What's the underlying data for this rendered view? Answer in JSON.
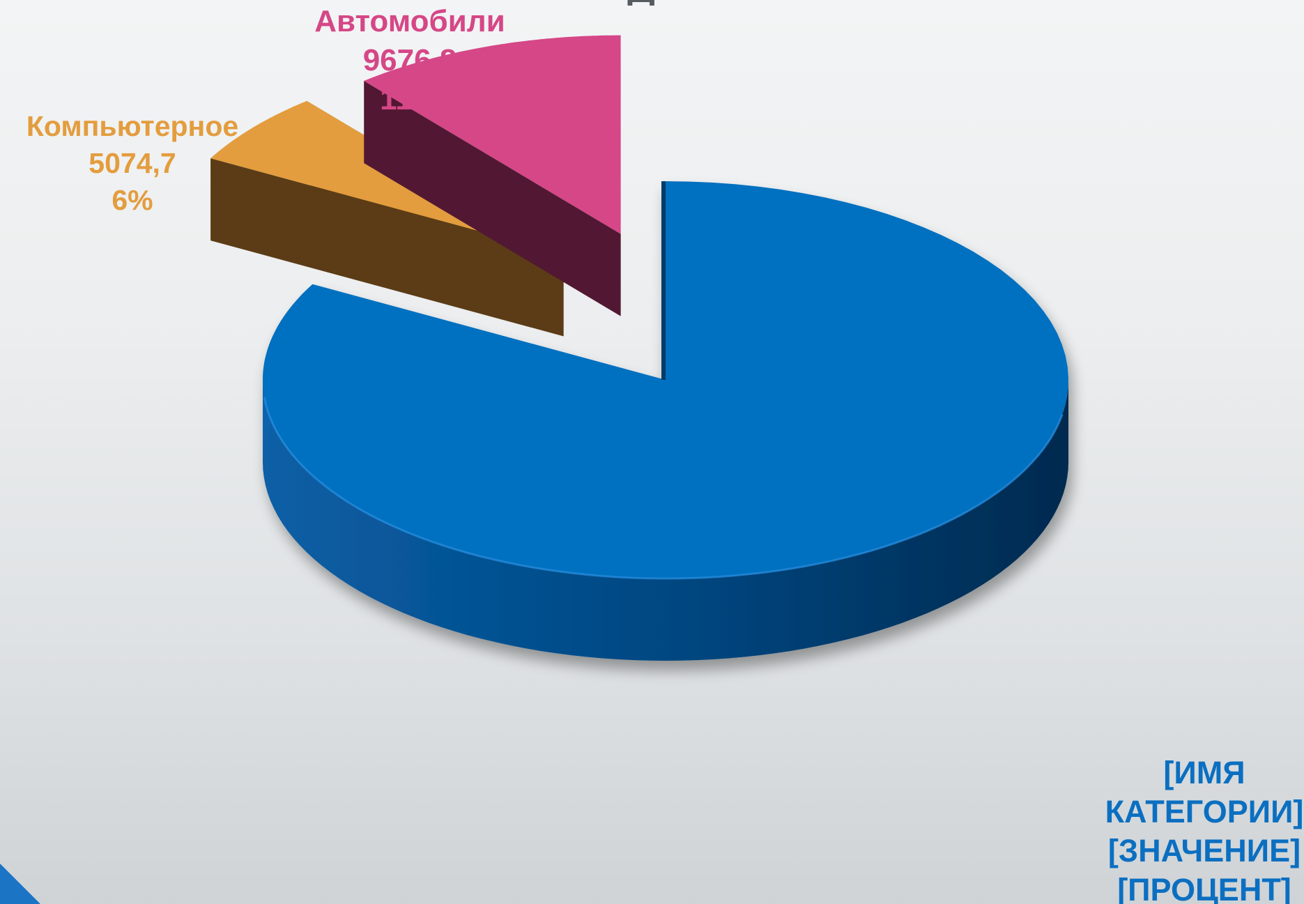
{
  "chart_data": {
    "type": "pie",
    "style": "3d-exploded",
    "title": "",
    "slices": [
      {
        "name": "",
        "value_label": "",
        "percent": 83,
        "label_lines": [
          "[ИМЯ",
          "КАТЕГОРИИ]",
          "[ЗНАЧЕНИЕ]",
          "[ПРОЦЕНТ]"
        ],
        "color": "#0070c0",
        "side_color": "#003d70"
      },
      {
        "name": "Компьютерное",
        "value_label": "5074,7",
        "percent_label": "6%",
        "percent": 6,
        "label_lines": [
          "Компьютерное",
          "5074,7",
          "6%"
        ],
        "color": "#e39d3e",
        "side_color": "#5b3c16"
      },
      {
        "name": "Автомобили",
        "value_label": "9676,8",
        "percent_label": "11%",
        "percent": 11,
        "label_lines": [
          "Автомобили",
          "9676,8",
          "11%"
        ],
        "color": "#d54787",
        "side_color": "#521833"
      }
    ]
  },
  "colors": {
    "label_blue": "#0b6fc1",
    "label_orange": "#e39d3e",
    "label_pink": "#d54787",
    "accent_corner": "#1b75c4"
  }
}
